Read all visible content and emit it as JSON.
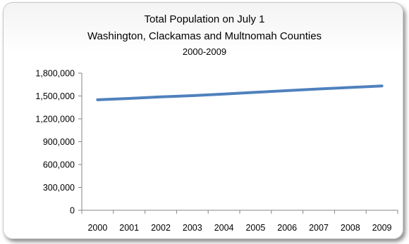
{
  "chart_data": {
    "type": "line",
    "title": "Total Population on July 1",
    "subtitle": "Washington, Clackamas and Multnomah Counties",
    "period": "2000-2009",
    "xlabel": "",
    "ylabel": "",
    "categories": [
      "2000",
      "2001",
      "2002",
      "2003",
      "2004",
      "2005",
      "2006",
      "2007",
      "2008",
      "2009"
    ],
    "series": [
      {
        "values": [
          1450000,
          1468000,
          1488000,
          1505000,
          1525000,
          1548000,
          1570000,
          1592000,
          1612000,
          1632000
        ]
      }
    ],
    "ylim": [
      0,
      1800000
    ],
    "yticks": [
      0,
      300000,
      600000,
      900000,
      1200000,
      1500000,
      1800000
    ],
    "ytick_labels": [
      "0",
      "300,000",
      "600,000",
      "900,000",
      "1,200,000",
      "1,500,000",
      "1,800,000"
    ],
    "grid": false,
    "legend": "none",
    "line_color": "#4f81bd"
  }
}
